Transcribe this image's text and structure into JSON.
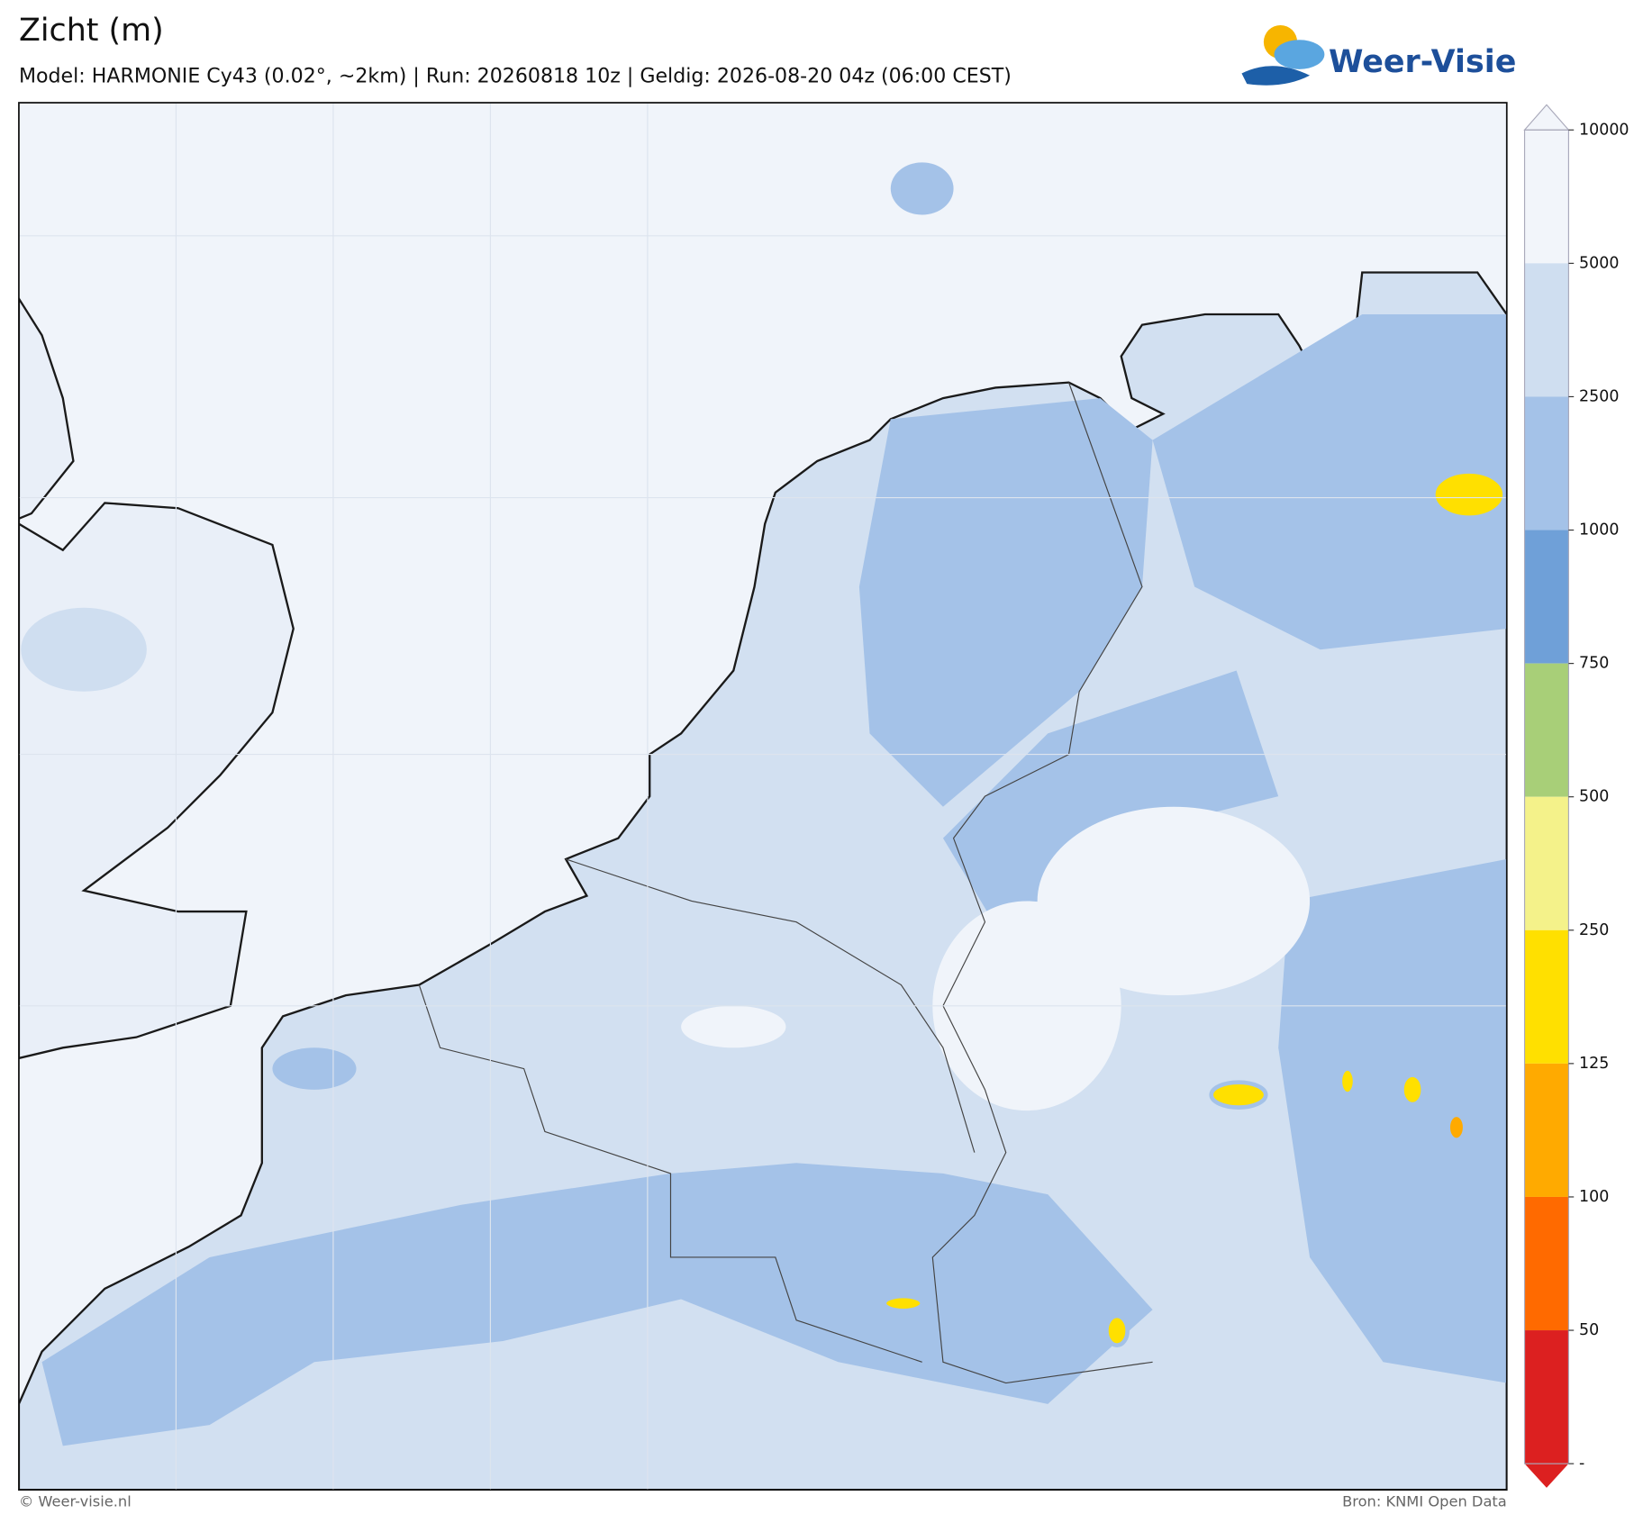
{
  "header": {
    "title": "Zicht (m)",
    "subtitle": "Model: HARMONIE Cy43 (0.02°, ~2km)  |  Run: 20260818 10z  |  Geldig: 2026-08-20 04z (06:00 CEST)",
    "logo": "Weer-Visie"
  },
  "colorbar": {
    "levels": [
      10000,
      5000,
      2500,
      1000,
      750,
      500,
      250,
      125,
      100,
      50,
      "-"
    ],
    "colors": [
      "#f2f5fa",
      "#cfdef0",
      "#a4c2e8",
      "#6fa0d8",
      "#a8cf78",
      "#f4f28a",
      "#ffe000",
      "#ffaa00",
      "#ff6a00",
      "#dc2020"
    ]
  },
  "footer": {
    "left": "© Weer-visie.nl",
    "right": "Bron: KNMI Open Data"
  }
}
